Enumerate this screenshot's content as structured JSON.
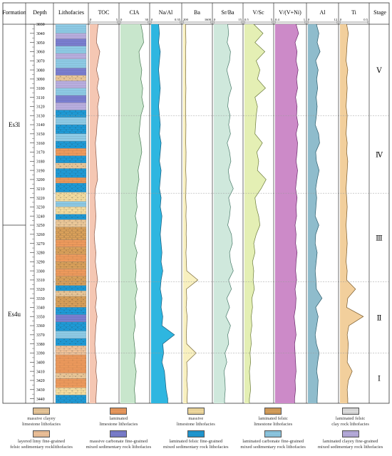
{
  "header": {
    "formation": "Formation",
    "depth": "Depth",
    "lithofacies": "Lithofacies",
    "stage": "Stage"
  },
  "formations": [
    {
      "id": "es3l",
      "label": "Es3l",
      "top": 3030,
      "bottom": 3250
    },
    {
      "id": "es4u",
      "label": "Es4u",
      "top": 3250,
      "bottom": 3445
    }
  ],
  "depth_axis": {
    "min": 3030,
    "max": 3445,
    "ticks": [
      3030,
      3040,
      3050,
      3060,
      3070,
      3080,
      3090,
      3100,
      3110,
      3120,
      3130,
      3140,
      3150,
      3160,
      3170,
      3180,
      3190,
      3200,
      3210,
      3220,
      3230,
      3240,
      3250,
      3260,
      3270,
      3280,
      3290,
      3300,
      3310,
      3320,
      3330,
      3340,
      3350,
      3360,
      3370,
      3380,
      3390,
      3400,
      3410,
      3420,
      3430,
      3440
    ]
  },
  "stages": [
    {
      "label": "Ⅴ",
      "top": 3030,
      "bottom": 3130
    },
    {
      "label": "Ⅳ",
      "top": 3130,
      "bottom": 3215
    },
    {
      "label": "Ⅲ",
      "top": 3215,
      "bottom": 3312
    },
    {
      "label": "Ⅱ",
      "top": 3312,
      "bottom": 3390
    },
    {
      "label": "Ⅰ",
      "top": 3390,
      "bottom": 3445
    }
  ],
  "lithology": [
    {
      "type": "laminated_carbonate_mixed",
      "top": 3030,
      "bottom": 3040
    },
    {
      "type": "laminated_clayey_mixed",
      "top": 3040,
      "bottom": 3046
    },
    {
      "type": "massive_carbonate_mixed",
      "top": 3046,
      "bottom": 3054
    },
    {
      "type": "laminated_carbonate_mixed",
      "top": 3054,
      "bottom": 3062
    },
    {
      "type": "laminated_clayey_mixed",
      "top": 3062,
      "bottom": 3068
    },
    {
      "type": "laminated_carbonate_mixed",
      "top": 3068,
      "bottom": 3078
    },
    {
      "type": "massive_carbonate_mixed",
      "top": 3078,
      "bottom": 3086
    },
    {
      "type": "massive_clayey_limestone",
      "top": 3086,
      "bottom": 3092
    },
    {
      "type": "laminated_clayey_mixed",
      "top": 3092,
      "bottom": 3100
    },
    {
      "type": "laminated_carbonate_mixed",
      "top": 3100,
      "bottom": 3108
    },
    {
      "type": "massive_carbonate_mixed",
      "top": 3108,
      "bottom": 3116
    },
    {
      "type": "laminated_clayey_mixed",
      "top": 3116,
      "bottom": 3124
    },
    {
      "type": "laminated_felsic_mixed",
      "top": 3124,
      "bottom": 3132
    },
    {
      "type": "laminated_carbonate_mixed",
      "top": 3132,
      "bottom": 3140
    },
    {
      "type": "laminated_felsic_mixed",
      "top": 3140,
      "bottom": 3150
    },
    {
      "type": "laminated_carbonate_mixed",
      "top": 3150,
      "bottom": 3158
    },
    {
      "type": "laminated_felsic_mixed",
      "top": 3158,
      "bottom": 3166
    },
    {
      "type": "laminated_limestone",
      "top": 3166,
      "bottom": 3174
    },
    {
      "type": "laminated_felsic_mixed",
      "top": 3174,
      "bottom": 3182
    },
    {
      "type": "massive_clayey_limestone",
      "top": 3182,
      "bottom": 3188
    },
    {
      "type": "laminated_felsic_mixed",
      "top": 3188,
      "bottom": 3198
    },
    {
      "type": "laminated_limestone",
      "top": 3198,
      "bottom": 3204
    },
    {
      "type": "laminated_felsic_mixed",
      "top": 3204,
      "bottom": 3214
    },
    {
      "type": "massive_limestone",
      "top": 3214,
      "bottom": 3224
    },
    {
      "type": "laminated_carbonate_mixed",
      "top": 3224,
      "bottom": 3230
    },
    {
      "type": "massive_limestone",
      "top": 3230,
      "bottom": 3238
    },
    {
      "type": "laminated_felsic_mixed",
      "top": 3238,
      "bottom": 3244
    },
    {
      "type": "massive_clayey_limestone",
      "top": 3244,
      "bottom": 3252
    },
    {
      "type": "laminated_felsic_limestone",
      "top": 3252,
      "bottom": 3266
    },
    {
      "type": "laminated_limestone",
      "top": 3266,
      "bottom": 3274
    },
    {
      "type": "laminated_felsic_limestone",
      "top": 3274,
      "bottom": 3282
    },
    {
      "type": "laminated_limestone",
      "top": 3282,
      "bottom": 3290
    },
    {
      "type": "laminated_felsic_limestone",
      "top": 3290,
      "bottom": 3298
    },
    {
      "type": "laminated_limestone",
      "top": 3298,
      "bottom": 3306
    },
    {
      "type": "laminated_felsic_limestone",
      "top": 3306,
      "bottom": 3316
    },
    {
      "type": "laminated_felsic_mixed",
      "top": 3316,
      "bottom": 3322
    },
    {
      "type": "massive_clayey_limestone",
      "top": 3322,
      "bottom": 3328
    },
    {
      "type": "laminated_felsic_limestone",
      "top": 3328,
      "bottom": 3340
    },
    {
      "type": "laminated_felsic_mixed",
      "top": 3340,
      "bottom": 3348
    },
    {
      "type": "massive_carbonate_mixed",
      "top": 3348,
      "bottom": 3356
    },
    {
      "type": "laminated_felsic_mixed",
      "top": 3356,
      "bottom": 3366
    },
    {
      "type": "laminated_carbonate_mixed",
      "top": 3366,
      "bottom": 3374
    },
    {
      "type": "laminated_felsic_mixed",
      "top": 3374,
      "bottom": 3382
    },
    {
      "type": "layered_limy_felsic",
      "top": 3382,
      "bottom": 3392
    },
    {
      "type": "laminated_limestone",
      "top": 3392,
      "bottom": 3412
    },
    {
      "type": "massive_clayey_limestone",
      "top": 3412,
      "bottom": 3418
    },
    {
      "type": "laminated_limestone",
      "top": 3418,
      "bottom": 3428
    },
    {
      "type": "massive_limestone",
      "top": 3428,
      "bottom": 3436
    },
    {
      "type": "laminated_felsic_mixed",
      "top": 3436,
      "bottom": 3445
    }
  ],
  "chart_data": {
    "type": "line",
    "orientation": "vertical-depth",
    "depths": [
      3030,
      3040,
      3050,
      3060,
      3070,
      3080,
      3090,
      3100,
      3110,
      3120,
      3130,
      3140,
      3150,
      3160,
      3170,
      3180,
      3190,
      3200,
      3210,
      3220,
      3230,
      3240,
      3250,
      3260,
      3270,
      3280,
      3290,
      3300,
      3310,
      3320,
      3330,
      3340,
      3350,
      3360,
      3370,
      3380,
      3390,
      3400,
      3410,
      3420,
      3430,
      3440
    ],
    "tracks": [
      {
        "id": "toc",
        "name": "TOC",
        "min": 0,
        "max": 5,
        "min_label": "0",
        "max_label": "5",
        "fill": "#f5c7b3",
        "stroke": "#8a5a4a",
        "values": [
          1.5,
          1.3,
          1.2,
          1.8,
          1.5,
          1.2,
          1.6,
          1.3,
          1.7,
          1.4,
          1.5,
          1.3,
          1.2,
          1.0,
          1.1,
          1.2,
          1.3,
          1.4,
          1.0,
          0.9,
          1.0,
          1.1,
          1.0,
          0.8,
          0.9,
          1.1,
          1.0,
          1.2,
          1.4,
          1.1,
          1.2,
          1.0,
          1.3,
          1.1,
          1.0,
          0.9,
          1.0,
          1.2,
          1.1,
          1.3,
          1.2,
          1.1
        ]
      },
      {
        "id": "cia",
        "name": "CIA",
        "min": 0,
        "max": 30,
        "min_label": "0",
        "max_label": "30",
        "fill": "#c8e6cc",
        "stroke": "#4a7a55",
        "values": [
          22,
          24,
          25,
          20,
          21,
          23,
          22,
          24,
          23,
          25,
          22,
          21,
          20,
          22,
          23,
          21,
          19,
          20,
          18,
          17,
          18,
          16,
          18,
          17,
          15,
          18,
          16,
          17,
          16,
          18,
          16,
          17,
          15,
          16,
          14,
          15,
          16,
          15,
          17,
          16,
          15,
          16
        ]
      },
      {
        "id": "naal",
        "name": "Na/Al",
        "min": 0,
        "max": 0.35,
        "min_label": "0",
        "max_label": "0.35",
        "fill": "#2eb6e0",
        "stroke": "#1a5a7a",
        "values": [
          0.09,
          0.1,
          0.09,
          0.11,
          0.1,
          0.09,
          0.1,
          0.11,
          0.1,
          0.09,
          0.1,
          0.11,
          0.1,
          0.12,
          0.11,
          0.1,
          0.12,
          0.11,
          0.1,
          0.12,
          0.11,
          0.13,
          0.12,
          0.11,
          0.12,
          0.13,
          0.12,
          0.14,
          0.12,
          0.11,
          0.13,
          0.12,
          0.14,
          0.13,
          0.28,
          0.14,
          0.15,
          0.13,
          0.16,
          0.17,
          0.18,
          0.2
        ]
      },
      {
        "id": "ba",
        "name": "Ba",
        "min": 200,
        "max": 1600,
        "min_label": "200",
        "max_label": "1600",
        "fill": "#f8f0c0",
        "stroke": "#7a6a3a",
        "values": [
          320,
          330,
          340,
          320,
          335,
          330,
          325,
          340,
          330,
          320,
          330,
          340,
          335,
          330,
          345,
          340,
          330,
          350,
          340,
          330,
          355,
          340,
          360,
          350,
          370,
          340,
          360,
          380,
          940,
          360,
          380,
          350,
          400,
          380,
          360,
          380,
          850,
          380,
          400,
          380,
          420,
          400
        ]
      },
      {
        "id": "srba",
        "name": "Sr/Ba",
        "min": 0,
        "max": 15,
        "min_label": "0",
        "max_label": "15",
        "fill": "#cfe8dc",
        "stroke": "#4a7a6a",
        "values": [
          7.5,
          8.0,
          7.2,
          9.0,
          8.5,
          7.0,
          8.2,
          9.5,
          8.0,
          7.5,
          8.8,
          8.0,
          9.0,
          7.2,
          8.5,
          9.2,
          7.8,
          8.5,
          10.5,
          8.0,
          9.0,
          8.5,
          7.5,
          9.5,
          10.0,
          8.5,
          9.0,
          10.5,
          8.0,
          9.5,
          7.0,
          8.5,
          6.5,
          9.0,
          7.5,
          8.0,
          6.0,
          7.0,
          5.5,
          6.0,
          6.2,
          5.8
        ]
      },
      {
        "id": "vsc",
        "name": "V/Sc",
        "min": 0.5,
        "max": 5,
        "min_label": "0.5",
        "max_label": "5",
        "fill": "#e4efb4",
        "stroke": "#6a7a3a",
        "values": [
          2.0,
          3.5,
          2.2,
          3.8,
          2.4,
          3.0,
          2.6,
          3.9,
          2.2,
          2.6,
          2.4,
          2.3,
          2.2,
          3.4,
          2.5,
          2.8,
          2.6,
          4.0,
          3.2,
          2.2,
          2.4,
          2.8,
          3.0,
          2.4,
          2.0,
          2.2,
          1.8,
          2.0,
          1.9,
          2.1,
          1.7,
          1.8,
          1.6,
          1.7,
          1.5,
          1.6,
          1.4,
          1.5,
          1.3,
          1.4,
          1.5,
          1.3
        ]
      },
      {
        "id": "vvni",
        "name": "V/(V+Ni)",
        "min": 0.4,
        "max": 1,
        "min_label": "0.4",
        "max_label": "1",
        "fill": "#cc8ac8",
        "stroke": "#6a2a6a",
        "values": [
          0.82,
          0.87,
          0.8,
          0.84,
          0.82,
          0.86,
          0.83,
          0.85,
          0.81,
          0.84,
          0.83,
          0.86,
          0.82,
          0.85,
          0.84,
          0.82,
          0.85,
          0.83,
          0.81,
          0.84,
          0.82,
          0.83,
          0.8,
          0.82,
          0.81,
          0.84,
          0.82,
          0.81,
          0.83,
          0.8,
          0.82,
          0.81,
          0.78,
          0.8,
          0.82,
          0.79,
          0.8,
          0.81,
          0.82,
          0.8,
          0.81,
          0.79
        ]
      },
      {
        "id": "al",
        "name": "Al",
        "min": 0,
        "max": 12,
        "min_label": "0",
        "max_label": "12",
        "fill": "#8fbccc",
        "stroke": "#2a5a6a",
        "values": [
          3.5,
          4.5,
          3.8,
          5.0,
          3.2,
          4.2,
          3.6,
          4.0,
          3.4,
          3.8,
          3.5,
          3.0,
          4.4,
          4.8,
          3.2,
          3.5,
          4.6,
          3.8,
          3.2,
          3.6,
          3.3,
          3.0,
          4.5,
          3.2,
          3.0,
          3.8,
          3.4,
          3.0,
          3.3,
          3.5,
          5.8,
          3.2,
          4.2,
          3.6,
          3.0,
          3.5,
          4.6,
          4.0,
          3.6,
          4.2,
          4.0,
          3.8
        ]
      },
      {
        "id": "ti",
        "name": "Ti",
        "min": 0,
        "max": 0.5,
        "min_label": "0",
        "max_label": "0.5",
        "fill": "#f2cf9c",
        "stroke": "#7a5a2a",
        "values": [
          0.12,
          0.15,
          0.13,
          0.12,
          0.11,
          0.14,
          0.12,
          0.13,
          0.12,
          0.11,
          0.13,
          0.12,
          0.11,
          0.13,
          0.12,
          0.14,
          0.13,
          0.12,
          0.11,
          0.12,
          0.13,
          0.12,
          0.11,
          0.12,
          0.13,
          0.12,
          0.11,
          0.13,
          0.12,
          0.28,
          0.14,
          0.12,
          0.42,
          0.16,
          0.13,
          0.15,
          0.14,
          0.13,
          0.22,
          0.15,
          0.13,
          0.14
        ]
      }
    ]
  },
  "legend": [
    {
      "key": "massive_clayey_limestone",
      "label_line1": "massive clayey",
      "label_line2": "limestone lithofacies"
    },
    {
      "key": "laminated_limestone",
      "label_line1": "laminated",
      "label_line2": "limestone lithofacies"
    },
    {
      "key": "massive_limestone",
      "label_line1": "massive",
      "label_line2": "limestone lithofacies"
    },
    {
      "key": "laminated_felsic_limestone",
      "label_line1": "laminated felsic",
      "label_line2": "limestone lithofacies"
    },
    {
      "key": "laminated_felsic_clay",
      "label_line1": "laminated felsic",
      "label_line2": "clay rock lithofacies"
    },
    {
      "key": "layered_limy_felsic",
      "label_line1": "layered limy fine-grained",
      "label_line2": "felsic sedimentary rocklithofacies"
    },
    {
      "key": "massive_carbonate_mixed",
      "label_line1": "massive carbonate fine-grained",
      "label_line2": "mixed sedimentary rock lithofacies"
    },
    {
      "key": "laminated_felsic_mixed",
      "label_line1": "laminated felsic fine-grained",
      "label_line2": "mixed sedimentary rock lithofacies"
    },
    {
      "key": "laminated_carbonate_mixed",
      "label_line1": "laminated carbonate fine-grained",
      "label_line2": "mixed sedimentary rock lithofacies"
    },
    {
      "key": "laminated_clayey_mixed",
      "label_line1": "laminated clayey fine-grained",
      "label_line2": "mixed sedimentary rock lithofacies"
    }
  ],
  "lithofacies_colors": {
    "massive_clayey_limestone": "#ecc99a",
    "laminated_limestone": "#ee9a5c",
    "massive_limestone": "#f6dea0",
    "laminated_felsic_limestone": "#d9a05a",
    "laminated_felsic_clay": "#e2e2e2",
    "layered_limy_felsic": "#f2c49a",
    "massive_carbonate_mixed": "#7a7ed0",
    "laminated_felsic_mixed": "#1e9ad6",
    "laminated_carbonate_mixed": "#8ecbe6",
    "laminated_clayey_mixed": "#b9aee0"
  }
}
